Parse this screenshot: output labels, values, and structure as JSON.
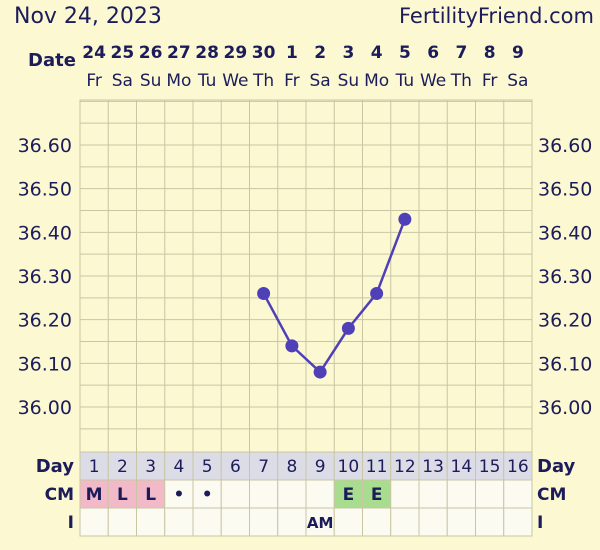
{
  "header": {
    "start_date": "Nov 24, 2023",
    "site": "FertilityFriend.com"
  },
  "colors": {
    "background": "#fbf8d2",
    "grid": "#c9c6a4",
    "temp_line": "#5040b8",
    "text": "#1c1c5a",
    "day_row_bg": "#dcdce6",
    "menses": "#f2b9c9",
    "egg_white": "#a8dc8e"
  },
  "chart_data": {
    "type": "line",
    "date_label": "Date",
    "dates": [
      "24",
      "25",
      "26",
      "27",
      "28",
      "29",
      "30",
      "1",
      "2",
      "3",
      "4",
      "5",
      "6",
      "7",
      "8",
      "9"
    ],
    "weekdays": [
      "Fr",
      "Sa",
      "Su",
      "Mo",
      "Tu",
      "We",
      "Th",
      "Fr",
      "Sa",
      "Su",
      "Mo",
      "Tu",
      "We",
      "Th",
      "Fr",
      "Sa"
    ],
    "y_ticks": [
      "36.60",
      "36.50",
      "36.40",
      "36.30",
      "36.20",
      "36.10",
      "36.00"
    ],
    "ylim": [
      35.95,
      36.7
    ],
    "grid": true,
    "temperatures": [
      null,
      null,
      null,
      null,
      null,
      null,
      36.26,
      36.14,
      36.08,
      36.18,
      36.26,
      36.43,
      null,
      null,
      null,
      null
    ],
    "day_label": "Day",
    "days": [
      "1",
      "2",
      "3",
      "4",
      "5",
      "6",
      "7",
      "8",
      "9",
      "10",
      "11",
      "12",
      "13",
      "14",
      "15",
      "16"
    ],
    "cm_label": "CM",
    "cm": [
      "M",
      "L",
      "L",
      "•",
      "•",
      "",
      "",
      "",
      "",
      "E",
      "E",
      "",
      "",
      "",
      "",
      ""
    ],
    "i_label": "I",
    "intercourse": [
      "",
      "",
      "",
      "",
      "",
      "",
      "",
      "",
      "AM",
      "",
      "",
      "",
      "",
      "",
      "",
      ""
    ]
  }
}
